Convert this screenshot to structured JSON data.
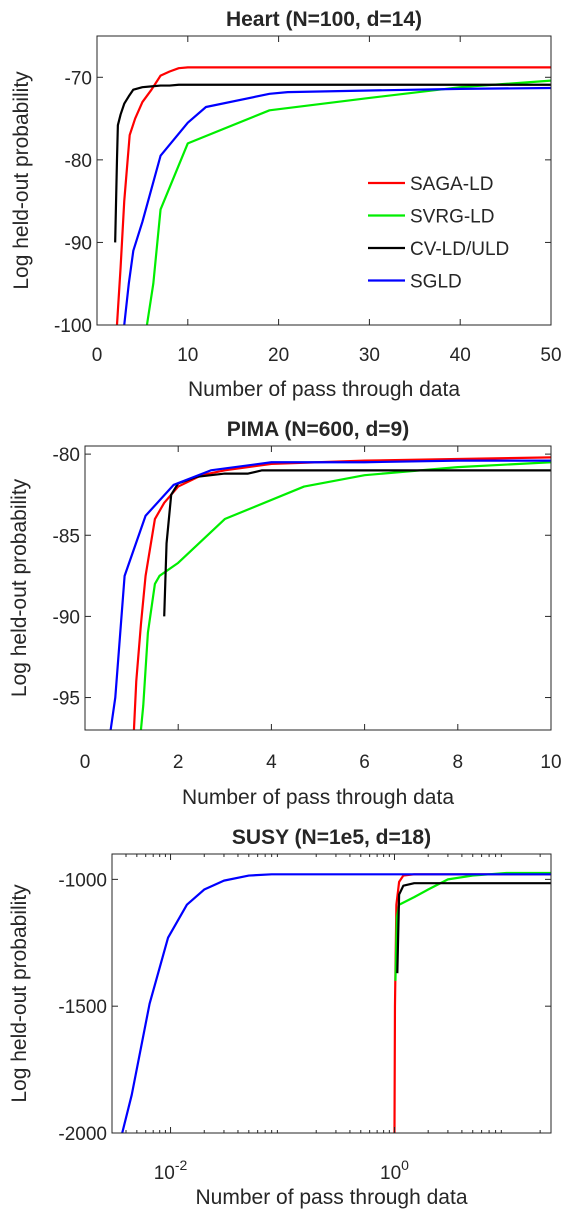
{
  "chart_data": [
    {
      "type": "line",
      "title": "Heart (N=100, d=14)",
      "xlabel": "Number of pass through data",
      "ylabel": "Log held-out probability",
      "xscale": "linear",
      "xlim": [
        0,
        50
      ],
      "ylim": [
        -100,
        -65
      ],
      "xticks": [
        0,
        10,
        20,
        30,
        40,
        50
      ],
      "xtick_labels": [
        "0",
        "10",
        "20",
        "30",
        "40",
        "50"
      ],
      "yticks": [
        -100,
        -90,
        -80,
        -70
      ],
      "ytick_labels": [
        "-100",
        "-90",
        "-80",
        "-70"
      ],
      "grid": false,
      "legend": {
        "position": "right",
        "entries": [
          "SAGA-LD",
          "SVRG-LD",
          "CV-LD/ULD",
          "SGLD"
        ]
      },
      "series": [
        {
          "name": "SAGA-LD",
          "color": "#ff0000",
          "x": [
            2.2,
            2.6,
            3.0,
            3.6,
            4.2,
            5.0,
            6.0,
            7.0,
            8.0,
            9.0,
            10.0,
            15.0,
            20.0,
            30.0,
            40.0,
            50.0
          ],
          "y": [
            -100,
            -93,
            -85,
            -77,
            -75,
            -73,
            -71.5,
            -69.8,
            -69.3,
            -68.9,
            -68.8,
            -68.8,
            -68.8,
            -68.8,
            -68.8,
            -68.8
          ]
        },
        {
          "name": "SVRG-LD",
          "color": "#00ee00",
          "x": [
            5.5,
            6.2,
            7.0,
            10.0,
            19.0,
            30.0,
            40.0,
            50.0
          ],
          "y": [
            -100,
            -95,
            -86,
            -78,
            -74,
            -72.5,
            -71.2,
            -70.4
          ]
        },
        {
          "name": "CV-LD/ULD",
          "color": "#000000",
          "x": [
            2.0,
            2.2,
            2.3,
            2.6,
            3.0,
            3.5,
            4.0,
            5.0,
            6.0,
            7.0,
            8.0,
            9.0,
            10.0,
            20.0,
            30.0,
            40.0,
            50.0
          ],
          "y": [
            -90,
            -80,
            -75.8,
            -74.5,
            -73.2,
            -72.3,
            -71.5,
            -71.2,
            -71.1,
            -71.0,
            -71.0,
            -70.9,
            -70.9,
            -70.9,
            -70.9,
            -70.9,
            -70.9
          ]
        },
        {
          "name": "SGLD",
          "color": "#0000ff",
          "x": [
            3.0,
            3.5,
            4.0,
            5.0,
            7.0,
            10.0,
            12.0,
            19.0,
            21.0,
            30.0,
            40.0,
            50.0
          ],
          "y": [
            -100,
            -95,
            -91,
            -87.5,
            -79.5,
            -75.5,
            -73.6,
            -72.0,
            -71.8,
            -71.6,
            -71.4,
            -71.3
          ]
        }
      ]
    },
    {
      "type": "line",
      "title": "PIMA (N=600, d=9)",
      "xlabel": "Number of pass through data",
      "ylabel": "Log held-out probability",
      "xscale": "linear",
      "xlim": [
        0,
        10
      ],
      "ylim": [
        -97,
        -79.5
      ],
      "xticks": [
        0,
        2,
        4,
        6,
        8,
        10
      ],
      "xtick_labels": [
        "0",
        "2",
        "4",
        "6",
        "8",
        "10"
      ],
      "yticks": [
        -95,
        -90,
        -85,
        -80
      ],
      "ytick_labels": [
        "-95",
        "-90",
        "-85",
        "-80"
      ],
      "grid": false,
      "series": [
        {
          "name": "SAGA-LD",
          "color": "#ff0000",
          "x": [
            1.05,
            1.1,
            1.2,
            1.3,
            1.5,
            1.7,
            2.0,
            2.5,
            3.0,
            4.0,
            6.0,
            8.0,
            10.0
          ],
          "y": [
            -97,
            -94,
            -90.5,
            -87.5,
            -84,
            -83,
            -82,
            -81.3,
            -81.0,
            -80.6,
            -80.4,
            -80.3,
            -80.2
          ]
        },
        {
          "name": "SVRG-LD",
          "color": "#00ee00",
          "x": [
            1.2,
            1.25,
            1.35,
            1.5,
            1.6,
            2.0,
            3.0,
            4.7,
            6.0,
            8.0,
            10.0
          ],
          "y": [
            -97,
            -95.5,
            -91,
            -88,
            -87.5,
            -86.7,
            -84,
            -82,
            -81.3,
            -80.8,
            -80.5
          ]
        },
        {
          "name": "CV-LD/ULD",
          "color": "#000000",
          "x": [
            1.7,
            1.75,
            1.85,
            2.0,
            2.4,
            3.0,
            3.5,
            3.8,
            10.0
          ],
          "y": [
            -90,
            -85.5,
            -82.5,
            -81.8,
            -81.4,
            -81.2,
            -81.2,
            -81.0,
            -81.0
          ]
        },
        {
          "name": "SGLD",
          "color": "#0000ff",
          "x": [
            0.55,
            0.65,
            0.85,
            1.3,
            1.9,
            2.7,
            4.0,
            6.0,
            8.0,
            10.0
          ],
          "y": [
            -97,
            -95,
            -87.5,
            -83.8,
            -81.9,
            -81.0,
            -80.5,
            -80.5,
            -80.4,
            -80.4
          ]
        }
      ]
    },
    {
      "type": "line",
      "title": "SUSY (N=1e5, d=18)",
      "xlabel": "Number of pass through data",
      "ylabel": "Log held-out probability",
      "xscale": "log",
      "xlim": [
        0.003,
        25
      ],
      "ylim": [
        -2000,
        -900
      ],
      "xticks": [
        0.01,
        1
      ],
      "xtick_labels": [
        {
          "base": "10",
          "exp": "-2"
        },
        {
          "base": "10",
          "exp": "0"
        }
      ],
      "yticks": [
        -2000,
        -1500,
        -1000
      ],
      "ytick_labels": [
        "-2000",
        "-1500",
        "-1000"
      ],
      "grid": false,
      "series": [
        {
          "name": "SAGA-LD",
          "color": "#ff0000",
          "x": [
            1.0,
            1.01,
            1.04,
            1.1,
            1.2,
            1.5,
            2.0,
            25.0
          ],
          "y": [
            -2000,
            -1500,
            -1100,
            -1010,
            -985,
            -980,
            -980,
            -980
          ]
        },
        {
          "name": "SVRG-LD",
          "color": "#00ee00",
          "x": [
            1.02,
            1.05,
            1.1,
            1.5,
            2.0,
            3.0,
            5.0,
            10.0,
            25.0
          ],
          "y": [
            -1400,
            -1150,
            -1100,
            -1070,
            -1040,
            -1000,
            -985,
            -975,
            -975
          ]
        },
        {
          "name": "CV-LD/ULD",
          "color": "#000000",
          "x": [
            1.06,
            1.1,
            1.2,
            1.5,
            3.0,
            10.0,
            25.0
          ],
          "y": [
            -1370,
            -1060,
            -1025,
            -1015,
            -1015,
            -1015,
            -1015
          ]
        },
        {
          "name": "SGLD",
          "color": "#0000ff",
          "x": [
            0.0037,
            0.0045,
            0.0065,
            0.0095,
            0.014,
            0.02,
            0.03,
            0.05,
            0.08,
            0.15,
            1.0,
            25.0
          ],
          "y": [
            -2000,
            -1850,
            -1490,
            -1230,
            -1100,
            -1040,
            -1005,
            -985,
            -980,
            -980,
            -980,
            -980
          ]
        }
      ]
    }
  ]
}
